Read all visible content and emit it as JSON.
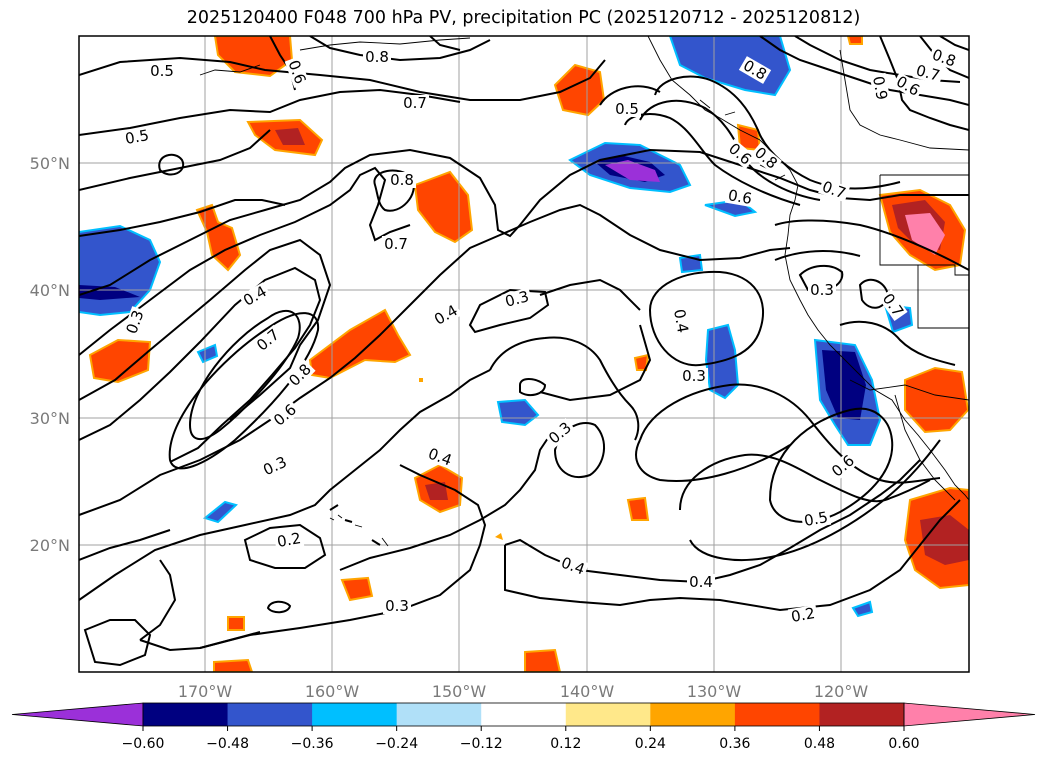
{
  "title": "2025120400 F048 700 hPa PV, precipitation PC (2025120712 - 2025120812)",
  "lat_labels": [
    "50°N",
    "40°N",
    "30°N",
    "20°N"
  ],
  "lon_labels": [
    "170°W",
    "160°W",
    "150°W",
    "140°W",
    "130°W",
    "120°W"
  ],
  "contour_labels": [
    "0.5",
    "0.8",
    "0.6",
    "0.7",
    "0.5",
    "0.8",
    "0.7",
    "0.6",
    "0.9",
    "0.7",
    "0.8",
    "0.8",
    "0.6",
    "0.5",
    "0.8",
    "0.7",
    "0.6",
    "0.7",
    "0.4",
    "0.7",
    "0.8",
    "0.6",
    "0.4",
    "0.3",
    "0.4",
    "0.3",
    "0.3",
    "0.3",
    "0.4",
    "0.3",
    "0.3",
    "0.6",
    "0.5",
    "0.4",
    "0.4",
    "0.2",
    "0.3",
    "0.2"
  ],
  "colorbar": {
    "ticks": [
      "−0.60",
      "−0.48",
      "−0.36",
      "−0.24",
      "−0.12",
      "0.12",
      "0.24",
      "0.36",
      "0.48",
      "0.60"
    ],
    "colors": [
      "#9b30d9",
      "#000080",
      "#3355cc",
      "#00bfff",
      "#b0e0f8",
      "#ffffff",
      "#ffe88a",
      "#ffa500",
      "#ff4500",
      "#b22222",
      "#ff80aa"
    ]
  }
}
